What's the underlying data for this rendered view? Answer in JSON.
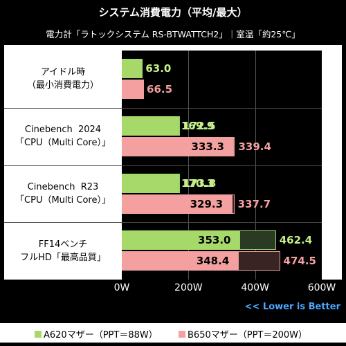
{
  "chart_data": {
    "type": "bar",
    "title": "システム消費電力（平均/最大）",
    "subtitle": "電力計「ラトックシステム RS-BTWATTCH2」｜室温「約25℃」",
    "categories": [
      [
        "アイドル時",
        "（最小消費電力）"
      ],
      [
        "Cinebench  2024",
        "「CPU（Multi Core）」"
      ],
      [
        "Cinebench  R23",
        "「CPU（Multi Core）」"
      ],
      [
        "FF14ベンチ",
        "フルHD「最高品質」"
      ]
    ],
    "series": [
      {
        "name": "A620マザー（PPT＝88W）",
        "color": "#a6d96a",
        "text_color": "#c6f08a",
        "avg": [
          63.0,
          169.9,
          170.3,
          353.0
        ],
        "max": [
          null,
          172.5,
          173.8,
          462.4
        ]
      },
      {
        "name": "B650マザー（PPT＝200W）",
        "color": "#f4a0a0",
        "text_color": "#f4a0a0",
        "avg": [
          66.5,
          333.3,
          329.3,
          348.4
        ],
        "max": [
          null,
          339.4,
          337.7,
          474.5
        ]
      }
    ],
    "xlim": [
      0,
      600
    ],
    "xticks": [
      "0W",
      "200W",
      "400W",
      "600W"
    ],
    "note": "<< Lower is Better"
  }
}
